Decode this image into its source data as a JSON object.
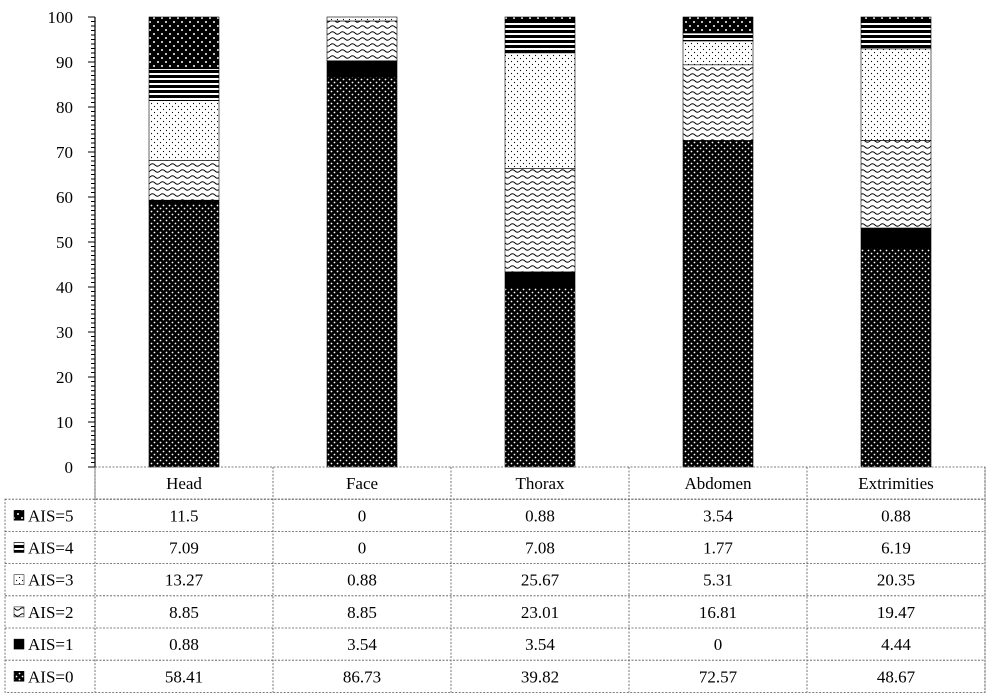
{
  "chart_data": {
    "type": "bar",
    "stacked": true,
    "categories": [
      "Head",
      "Face",
      "Thorax",
      "Abdomen",
      "Extrimities"
    ],
    "ylim": [
      0,
      100
    ],
    "yticks": [
      0,
      10,
      20,
      30,
      40,
      50,
      60,
      70,
      80,
      90,
      100
    ],
    "series": [
      {
        "name": "AIS=0",
        "pattern": "dotted-dark",
        "values": [
          58.41,
          86.73,
          39.82,
          72.57,
          48.67
        ],
        "display": [
          "58.41",
          "86.73",
          "39.82",
          "72.57",
          "48.67"
        ]
      },
      {
        "name": "AIS=1",
        "pattern": "solid-black",
        "values": [
          0.88,
          3.54,
          3.54,
          0,
          4.44
        ],
        "display": [
          "0.88",
          "3.54",
          "3.54",
          "0",
          "4.44"
        ]
      },
      {
        "name": "AIS=2",
        "pattern": "wave",
        "values": [
          8.85,
          8.85,
          23.01,
          16.81,
          19.47
        ],
        "display": [
          "8.85",
          "8.85",
          "23.01",
          "16.81",
          "19.47"
        ]
      },
      {
        "name": "AIS=3",
        "pattern": "sparse-dots",
        "values": [
          13.27,
          0.88,
          25.67,
          5.31,
          20.35
        ],
        "display": [
          "13.27",
          "0.88",
          "25.67",
          "5.31",
          "20.35"
        ]
      },
      {
        "name": "AIS=4",
        "pattern": "horizontal-stripes",
        "values": [
          7.09,
          0,
          7.08,
          1.77,
          6.19
        ],
        "display": [
          "7.09",
          "0",
          "7.08",
          "1.77",
          "6.19"
        ]
      },
      {
        "name": "AIS=5",
        "pattern": "dark-dots",
        "values": [
          11.5,
          0,
          0.88,
          3.54,
          0.88
        ],
        "display": [
          "11.5",
          "0",
          "0.88",
          "3.54",
          "0.88"
        ]
      }
    ],
    "table_row_order": [
      "AIS=5",
      "AIS=4",
      "AIS=3",
      "AIS=2",
      "AIS=1",
      "AIS=0"
    ],
    "grid": false,
    "legend": "data-table"
  }
}
